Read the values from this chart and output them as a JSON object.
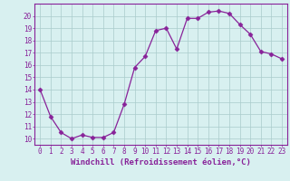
{
  "x": [
    0,
    1,
    2,
    3,
    4,
    5,
    6,
    7,
    8,
    9,
    10,
    11,
    12,
    13,
    14,
    15,
    16,
    17,
    18,
    19,
    20,
    21,
    22,
    23
  ],
  "y": [
    14.0,
    11.8,
    10.5,
    10.0,
    10.3,
    10.1,
    10.1,
    10.5,
    12.8,
    15.8,
    16.7,
    18.8,
    19.0,
    17.3,
    19.8,
    19.8,
    20.3,
    20.4,
    20.2,
    19.3,
    18.5,
    17.1,
    16.9,
    16.5
  ],
  "line_color": "#882299",
  "marker": "D",
  "markersize": 2.5,
  "linewidth": 0.9,
  "bg_color": "#d8f0f0",
  "grid_color": "#aacccc",
  "xlabel": "Windchill (Refroidissement éolien,°C)",
  "xlabel_fontsize": 6.5,
  "ylim": [
    9.5,
    21.0
  ],
  "xlim": [
    -0.5,
    23.5
  ],
  "yticks": [
    10,
    11,
    12,
    13,
    14,
    15,
    16,
    17,
    18,
    19,
    20
  ],
  "xticks": [
    0,
    1,
    2,
    3,
    4,
    5,
    6,
    7,
    8,
    9,
    10,
    11,
    12,
    13,
    14,
    15,
    16,
    17,
    18,
    19,
    20,
    21,
    22,
    23
  ],
  "tick_fontsize": 5.5,
  "tick_color": "#882299",
  "label_color": "#882299",
  "spine_color": "#882299"
}
